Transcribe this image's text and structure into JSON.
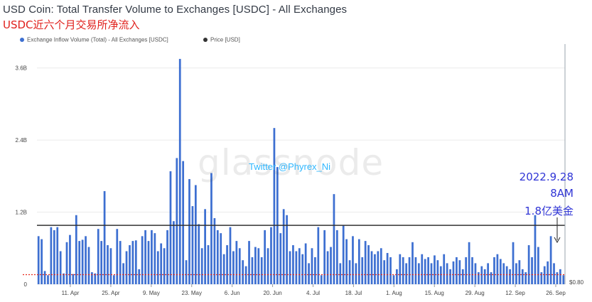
{
  "chart_data": {
    "type": "bar",
    "title": "USD Coin: Total Transfer Volume to Exchanges [USDC] - All Exchanges",
    "subtitle": "USDC近六个月交易所净流入",
    "legend": [
      {
        "label": "Exchange Inflow Volume (Total) - All Exchanges [USDC]",
        "color": "#3d6fd1"
      },
      {
        "label": "Price [USD]",
        "color": "#333333"
      }
    ],
    "legend_position": "top-left",
    "y_ticks": [
      {
        "value": 0,
        "label": "0"
      },
      {
        "value": 1.2,
        "label": "1.2B"
      },
      {
        "value": 2.4,
        "label": "2.4B"
      },
      {
        "value": 3.6,
        "label": "3.6B"
      }
    ],
    "ylim": [
      0,
      3.95
    ],
    "y_unit": "B",
    "right_axis_tick": {
      "label": "$0.80"
    },
    "x_ticks": [
      "11. Apr",
      "25. Apr",
      "9. May",
      "23. May",
      "6. Jun",
      "20. Jun",
      "4. Jul",
      "18. Jul",
      "1. Aug",
      "15. Aug",
      "29. Aug",
      "12. Sep",
      "26. Sep"
    ],
    "reference_line_value": 0.16,
    "price_line_value": 0.98,
    "bar_color": "#3d6fd1",
    "values": [
      0.8,
      0.75,
      0.22,
      0.15,
      0.95,
      0.9,
      0.95,
      0.55,
      0.18,
      0.7,
      0.82,
      0.17,
      1.15,
      0.72,
      0.74,
      0.8,
      0.62,
      0.2,
      0.18,
      0.92,
      0.72,
      1.55,
      0.65,
      0.6,
      0.15,
      0.92,
      0.72,
      0.35,
      0.55,
      0.65,
      0.72,
      0.73,
      0.25,
      0.8,
      0.9,
      0.72,
      0.9,
      0.85,
      0.55,
      0.68,
      0.6,
      0.9,
      1.88,
      1.05,
      2.1,
      3.75,
      2.05,
      0.4,
      1.75,
      1.3,
      1.65,
      1.0,
      0.6,
      1.25,
      0.65,
      1.85,
      1.1,
      0.9,
      0.85,
      0.5,
      0.65,
      0.95,
      0.55,
      0.72,
      0.6,
      0.4,
      0.3,
      0.72,
      0.45,
      0.62,
      0.6,
      0.45,
      0.9,
      0.6,
      0.95,
      2.6,
      1.95,
      0.85,
      1.25,
      1.15,
      0.55,
      0.65,
      0.55,
      0.6,
      0.5,
      0.68,
      0.35,
      0.6,
      0.45,
      0.95,
      0.15,
      0.9,
      0.55,
      0.62,
      1.5,
      0.9,
      0.35,
      0.98,
      0.75,
      0.4,
      0.8,
      0.35,
      0.75,
      0.45,
      0.72,
      0.65,
      0.55,
      0.5,
      0.55,
      0.6,
      0.4,
      0.52,
      0.45,
      0.15,
      0.25,
      0.5,
      0.45,
      0.35,
      0.45,
      0.7,
      0.45,
      0.35,
      0.5,
      0.42,
      0.45,
      0.35,
      0.48,
      0.4,
      0.3,
      0.5,
      0.35,
      0.25,
      0.38,
      0.45,
      0.4,
      0.25,
      0.45,
      0.7,
      0.45,
      0.35,
      0.2,
      0.3,
      0.25,
      0.35,
      0.2,
      0.45,
      0.5,
      0.42,
      0.35,
      0.3,
      0.25,
      0.7,
      0.35,
      0.4,
      0.25,
      0.2,
      0.65,
      0.45,
      1.15,
      0.62,
      0.2,
      0.3,
      0.38,
      0.8,
      0.35,
      0.2,
      0.25,
      0.15
    ]
  },
  "watermark": "glassnode",
  "twitter_handle": "Twitter @Phyrex_Ni",
  "annotation": {
    "lines": [
      "2022.9.28",
      "8AM",
      "1.8亿美金"
    ],
    "color": "#3035d6"
  }
}
